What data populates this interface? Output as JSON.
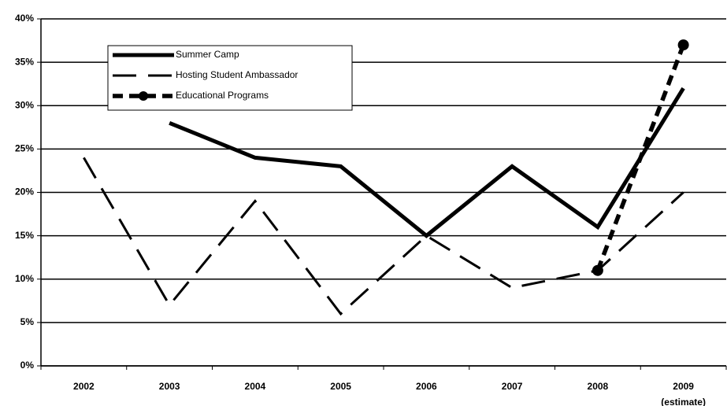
{
  "chart_data": {
    "type": "line",
    "categories": [
      "2002",
      "2003",
      "2004",
      "2005",
      "2006",
      "2007",
      "2008",
      "2009 (estimate)"
    ],
    "series": [
      {
        "name": "Summer Camp",
        "color": "#000000",
        "values": [
          null,
          28,
          24,
          23,
          15,
          23,
          16,
          32
        ]
      },
      {
        "name": "Hosting Student Ambassador",
        "color": "#000000",
        "values": [
          24,
          7,
          19,
          6,
          15,
          9,
          11,
          20
        ]
      },
      {
        "name": "Educational Programs",
        "color": "#000000",
        "marker": "circle",
        "values": [
          null,
          null,
          null,
          null,
          null,
          null,
          11,
          37
        ]
      }
    ],
    "ylim": [
      0,
      40
    ],
    "yticks": [
      {
        "value": 0,
        "label": "0%"
      },
      {
        "value": 5,
        "label": "5%"
      },
      {
        "value": 10,
        "label": "10%"
      },
      {
        "value": 15,
        "label": "15%"
      },
      {
        "value": 20,
        "label": "20%"
      },
      {
        "value": 25,
        "label": "25%"
      },
      {
        "value": 30,
        "label": "30%"
      },
      {
        "value": 35,
        "label": "35%"
      },
      {
        "value": 40,
        "label": "40%"
      }
    ],
    "grid": true,
    "legend": "upper left"
  }
}
